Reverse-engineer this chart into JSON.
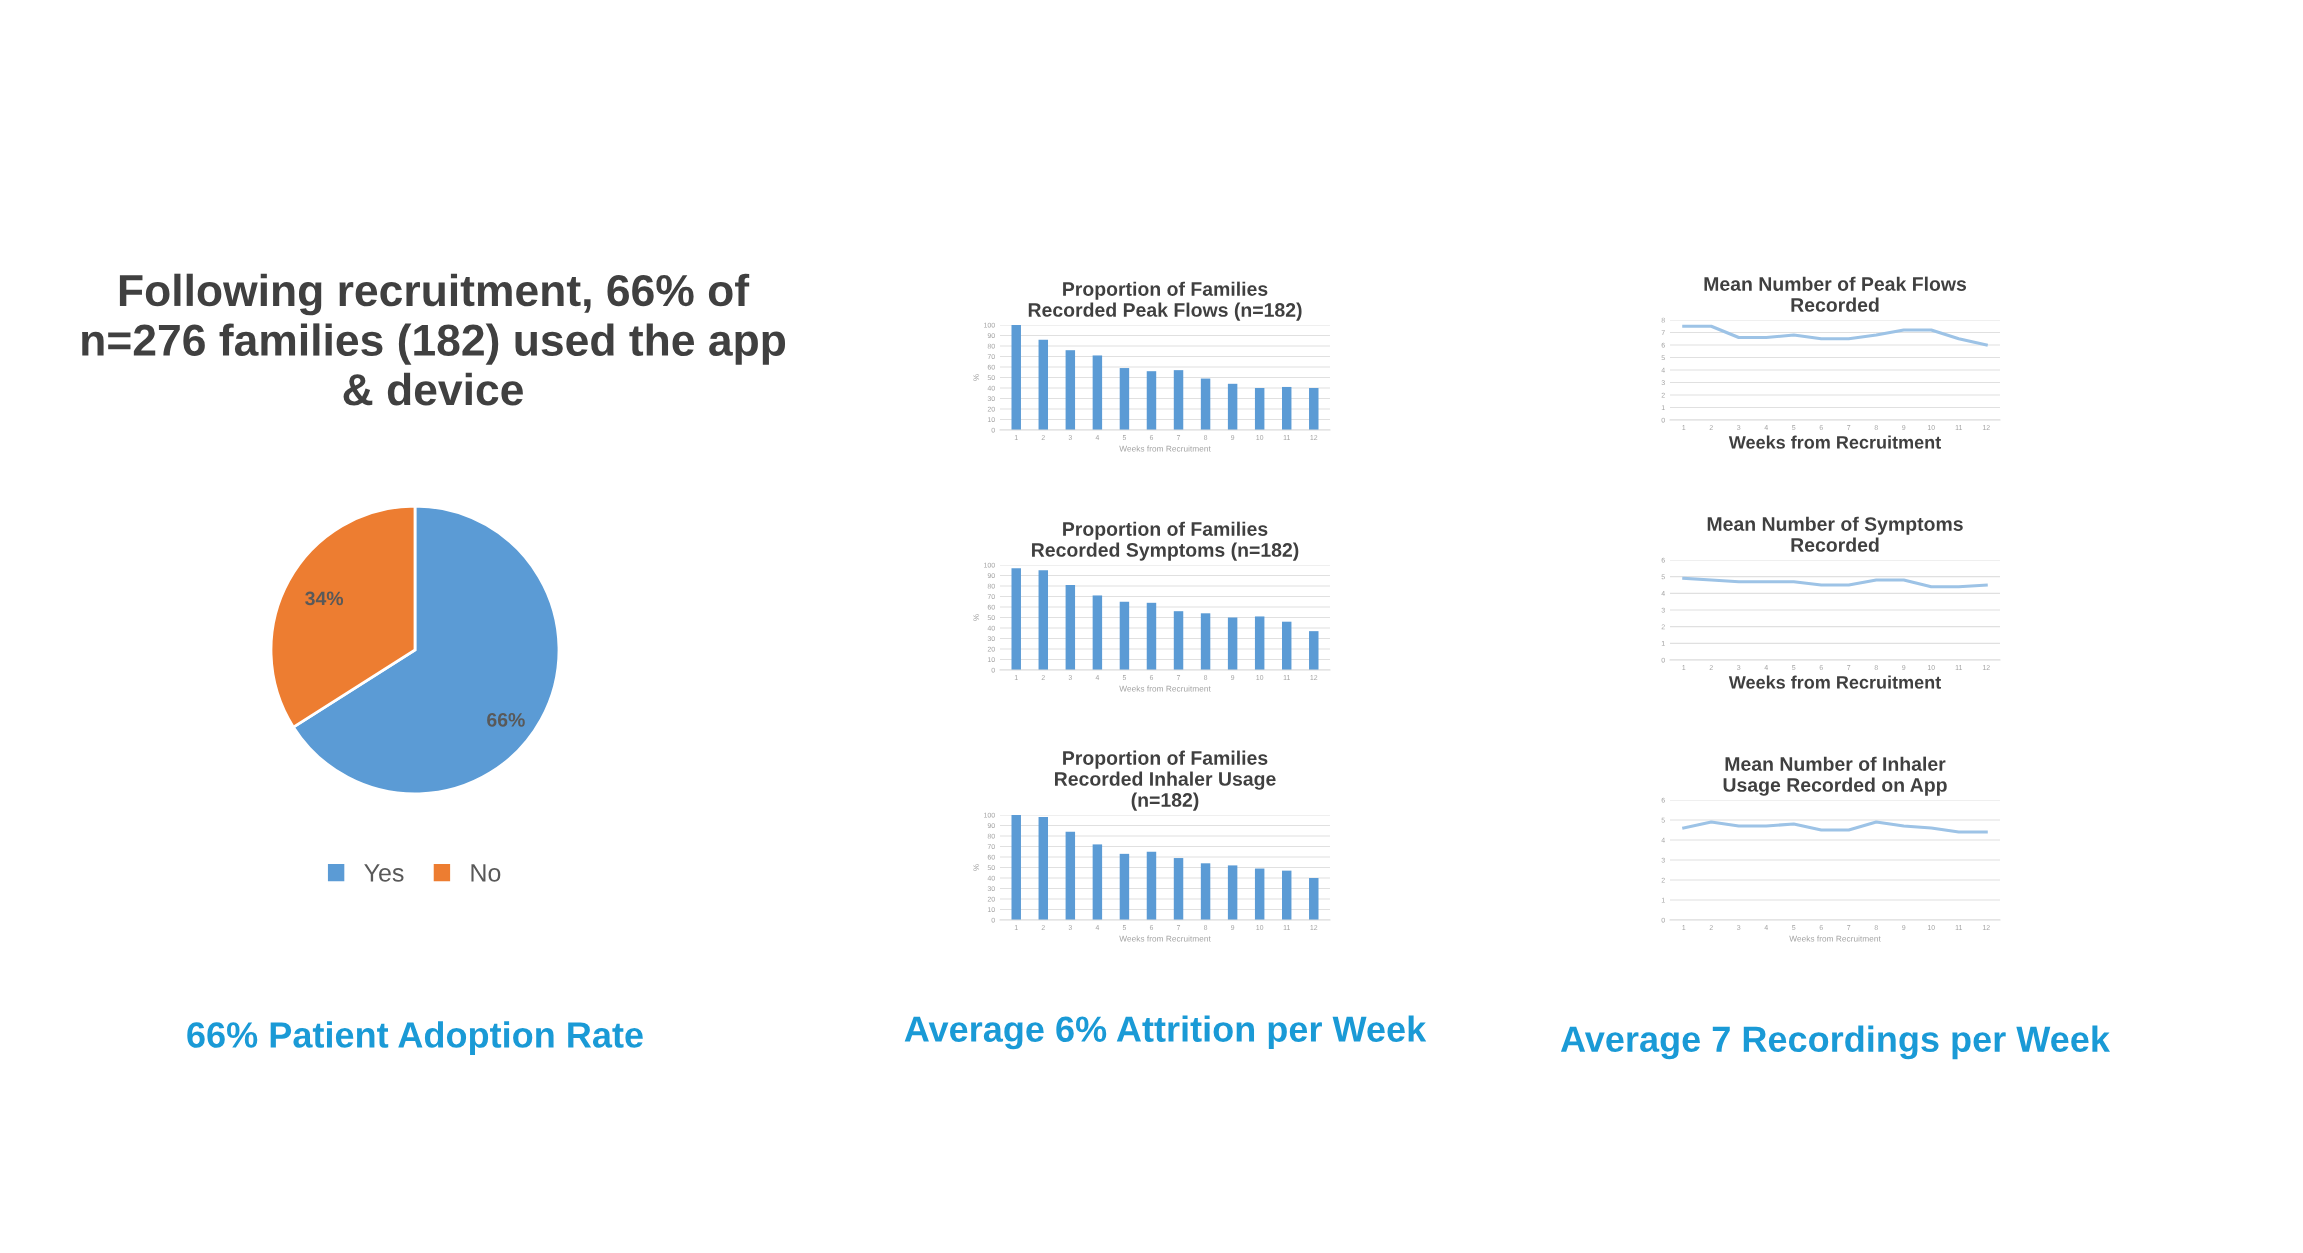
{
  "chart_data": [
    {
      "type": "pie",
      "title": "Following recruitment, 66% of n=276 families (182) used the app & device",
      "categories": [
        "Yes",
        "No"
      ],
      "values": [
        66,
        34
      ],
      "colors": [
        "#5b9bd5",
        "#ed7d31"
      ],
      "value_labels": [
        "66%",
        "34%"
      ],
      "legend": "bottom",
      "annotations": [
        "66% Patient Adoption Rate"
      ]
    },
    {
      "type": "bar",
      "title": "Proportion of Families Recorded Peak Flows (n=182)",
      "xlabel": "Weeks from Recruitment",
      "ylabel": "%",
      "categories": [
        "1",
        "2",
        "3",
        "4",
        "5",
        "6",
        "7",
        "8",
        "9",
        "10",
        "11",
        "12"
      ],
      "series": [
        {
          "color": "#5b9bd5",
          "values": [
            100,
            86,
            76,
            71,
            59,
            56,
            57,
            49,
            44,
            40,
            41,
            40
          ]
        }
      ],
      "ylim": [
        0,
        100
      ],
      "yticks": [
        0,
        10,
        20,
        30,
        40,
        50,
        60,
        70,
        80,
        90,
        100
      ],
      "grid": "y"
    },
    {
      "type": "bar",
      "title": "Proportion of Families Recorded Symptoms (n=182)",
      "xlabel": "Weeks from Recruitment",
      "ylabel": "%",
      "categories": [
        "1",
        "2",
        "3",
        "4",
        "5",
        "6",
        "7",
        "8",
        "9",
        "10",
        "11",
        "12"
      ],
      "series": [
        {
          "color": "#5b9bd5",
          "values": [
            97,
            95,
            81,
            71,
            65,
            64,
            56,
            54,
            50,
            51,
            46,
            37
          ]
        }
      ],
      "ylim": [
        0,
        100
      ],
      "yticks": [
        0,
        10,
        20,
        30,
        40,
        50,
        60,
        70,
        80,
        90,
        100
      ],
      "grid": "y"
    },
    {
      "type": "bar",
      "title": "Proportion of Families Recorded Inhaler Usage (n=182)",
      "xlabel": "Weeks from Recruitment",
      "ylabel": "%",
      "categories": [
        "1",
        "2",
        "3",
        "4",
        "5",
        "6",
        "7",
        "8",
        "9",
        "10",
        "11",
        "12"
      ],
      "series": [
        {
          "color": "#5b9bd5",
          "values": [
            100,
            98,
            84,
            72,
            63,
            65,
            59,
            54,
            52,
            49,
            47,
            40
          ]
        }
      ],
      "ylim": [
        0,
        100
      ],
      "yticks": [
        0,
        10,
        20,
        30,
        40,
        50,
        60,
        70,
        80,
        90,
        100
      ],
      "grid": "y",
      "annotations": [
        "Average 6% Attrition per Week"
      ]
    },
    {
      "type": "line",
      "title": "Mean Number of Peak Flows Recorded",
      "xlabel": "Weeks from Recruitment",
      "categories": [
        "1",
        "2",
        "3",
        "4",
        "5",
        "6",
        "7",
        "8",
        "9",
        "10",
        "11",
        "12"
      ],
      "series": [
        {
          "color": "#9dc3e6",
          "values": [
            7.5,
            7.5,
            6.6,
            6.6,
            6.8,
            6.5,
            6.5,
            6.8,
            7.2,
            7.2,
            6.5,
            6.0
          ]
        }
      ],
      "ylim": [
        0,
        8
      ],
      "yticks": [
        0,
        1,
        2,
        3,
        4,
        5,
        6,
        7,
        8
      ],
      "grid": "y",
      "line_style": "solid"
    },
    {
      "type": "line",
      "title": "Mean Number of Symptoms Recorded",
      "xlabel": "Weeks from Recruitment",
      "categories": [
        "1",
        "2",
        "3",
        "4",
        "5",
        "6",
        "7",
        "8",
        "9",
        "10",
        "11",
        "12"
      ],
      "series": [
        {
          "color": "#9dc3e6",
          "values": [
            4.9,
            4.8,
            4.7,
            4.7,
            4.7,
            4.5,
            4.5,
            4.8,
            4.8,
            4.4,
            4.4,
            4.5
          ]
        }
      ],
      "ylim": [
        0,
        6
      ],
      "yticks": [
        0,
        1,
        2,
        3,
        4,
        5,
        6
      ],
      "grid": "y",
      "line_style": "solid"
    },
    {
      "type": "line",
      "title": "Mean Number of Inhaler Usage Recorded on App",
      "xlabel": "Weeks from Recruitment",
      "categories": [
        "1",
        "2",
        "3",
        "4",
        "5",
        "6",
        "7",
        "8",
        "9",
        "10",
        "11",
        "12"
      ],
      "series": [
        {
          "color": "#9dc3e6",
          "values": [
            4.6,
            4.9,
            4.7,
            4.7,
            4.8,
            4.5,
            4.5,
            4.9,
            4.7,
            4.6,
            4.4,
            4.4
          ]
        }
      ],
      "ylim": [
        0,
        6
      ],
      "yticks": [
        0,
        1,
        2,
        3,
        4,
        5,
        6
      ],
      "grid": "y",
      "line_style": "solid",
      "annotations": [
        "Average 7 Recordings per Week"
      ]
    }
  ]
}
